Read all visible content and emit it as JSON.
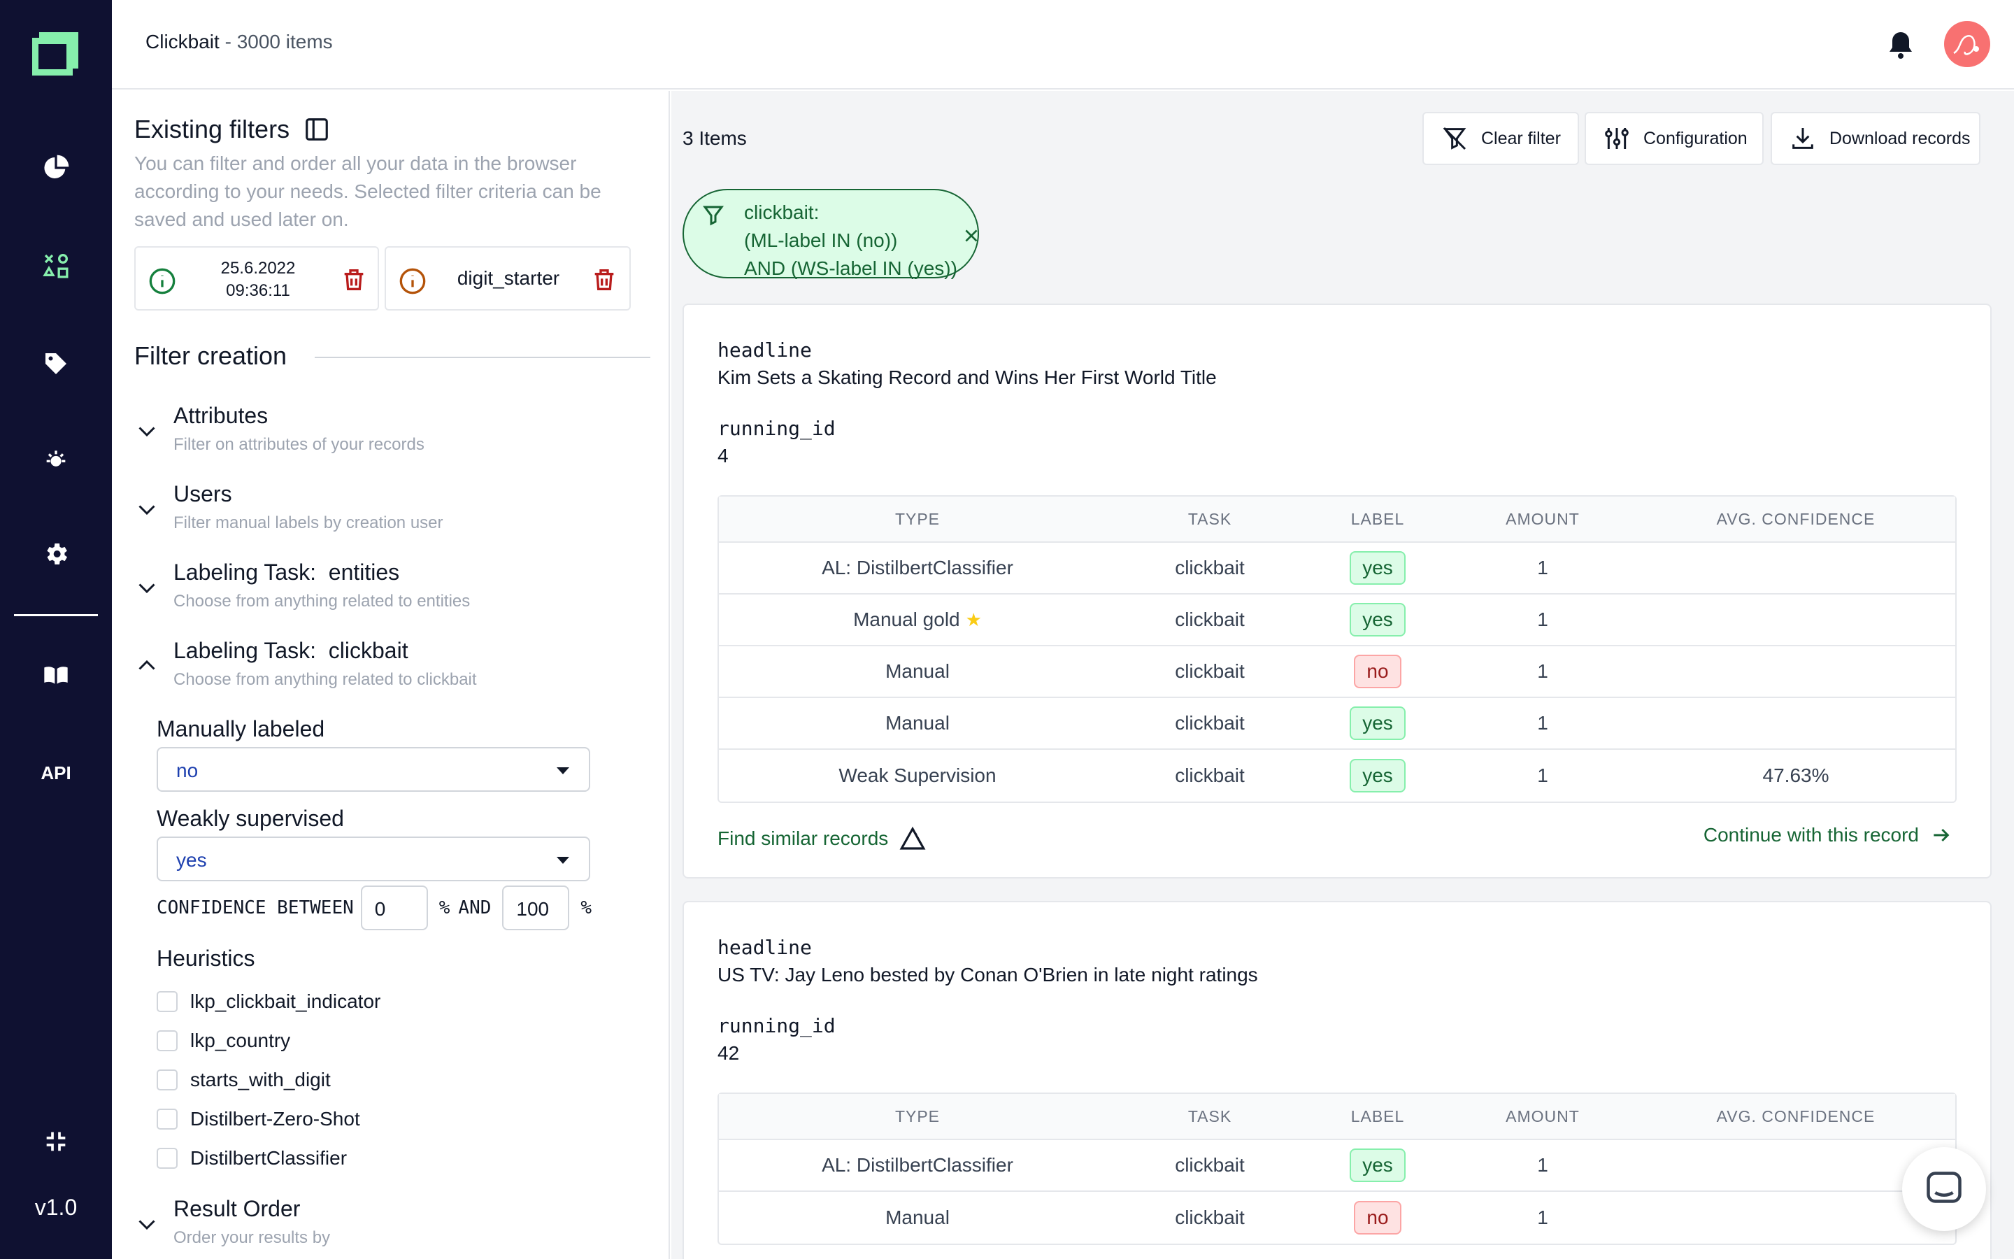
{
  "header": {
    "project": "Clickbait",
    "separator": " - ",
    "item_count": "3000 items"
  },
  "nav": {
    "items": [
      "overview-icon",
      "data-browser-icon",
      "labeling-icon",
      "heuristics-icon",
      "settings-icon",
      "docs-icon",
      "api-label"
    ],
    "api_label": "API",
    "version": "v1.0"
  },
  "sidebar": {
    "existing_title": "Existing filters",
    "existing_desc": "You can filter and order all your data in the browser according to your needs. Selected filter criteria can be saved and used later on.",
    "saved_filters": [
      {
        "name_line1": "25.6.2022",
        "name_line2": "09:36:11"
      },
      {
        "name": "digit_starter"
      }
    ],
    "filter_creation_title": "Filter creation",
    "sections": [
      {
        "title": "Attributes",
        "subtitle": "Filter on attributes of your records"
      },
      {
        "title": "Users",
        "subtitle": "Filter manual labels by creation user"
      },
      {
        "title": "Labeling Task:  entities",
        "subtitle": "Choose from anything related to entities"
      },
      {
        "title": "Labeling Task:  clickbait",
        "subtitle": "Choose from anything related to clickbait"
      }
    ],
    "manually_labeled": {
      "label": "Manually labeled",
      "value": "no"
    },
    "weakly_supervised": {
      "label": "Weakly supervised",
      "value": "yes"
    },
    "confidence": {
      "prefix": "CONFIDENCE BETWEEN",
      "min": "0",
      "pct1": "%",
      "and": "AND",
      "max": "100",
      "pct2": "%"
    },
    "heuristics_title": "Heuristics",
    "heuristics": [
      "lkp_clickbait_indicator",
      "lkp_country",
      "starts_with_digit",
      "Distilbert-Zero-Shot",
      "DistilbertClassifier"
    ],
    "result_order": {
      "title": "Result Order",
      "subtitle": "Order your results by"
    }
  },
  "main": {
    "items_count": "3 Items",
    "toolbar": {
      "clear_filter": "Clear filter",
      "configuration": "Configuration",
      "download": "Download records"
    },
    "active_filter": {
      "line1": "clickbait:",
      "line2": "(ML-label IN (no))",
      "line3": "AND (WS-label IN (yes))"
    },
    "table_headers": {
      "type": "TYPE",
      "task": "TASK",
      "label": "LABEL",
      "amount": "AMOUNT",
      "confidence": "AVG. CONFIDENCE"
    },
    "records": [
      {
        "field1_name": "headline",
        "field1_value": "Kim Sets a Skating Record and Wins Her First World Title",
        "field2_name": "running_id",
        "field2_value": "4",
        "rows": [
          {
            "type": "AL: DistilbertClassifier",
            "task": "clickbait",
            "label": "yes",
            "amount": "1",
            "confidence": ""
          },
          {
            "type": "Manual gold",
            "task": "clickbait",
            "label": "yes",
            "amount": "1",
            "confidence": ""
          },
          {
            "type": "Manual",
            "task": "clickbait",
            "label": "no",
            "amount": "1",
            "confidence": ""
          },
          {
            "type": "Manual",
            "task": "clickbait",
            "label": "yes",
            "amount": "1",
            "confidence": ""
          },
          {
            "type": "Weak Supervision",
            "task": "clickbait",
            "label": "yes",
            "amount": "1",
            "confidence": "47.63%"
          }
        ],
        "find_similar": "Find similar records",
        "continue": "Continue with this record"
      },
      {
        "field1_name": "headline",
        "field1_value": "US TV: Jay Leno bested by Conan O'Brien in late night ratings",
        "field2_name": "running_id",
        "field2_value": "42",
        "rows": [
          {
            "type": "AL: DistilbertClassifier",
            "task": "clickbait",
            "label": "yes",
            "amount": "1",
            "confidence": ""
          },
          {
            "type": "Manual",
            "task": "clickbait",
            "label": "no",
            "amount": "1",
            "confidence": ""
          }
        ]
      }
    ]
  },
  "colors": {
    "nav_bg": "#0f1131",
    "accent_green": "#86efac",
    "link_green": "#166534"
  }
}
